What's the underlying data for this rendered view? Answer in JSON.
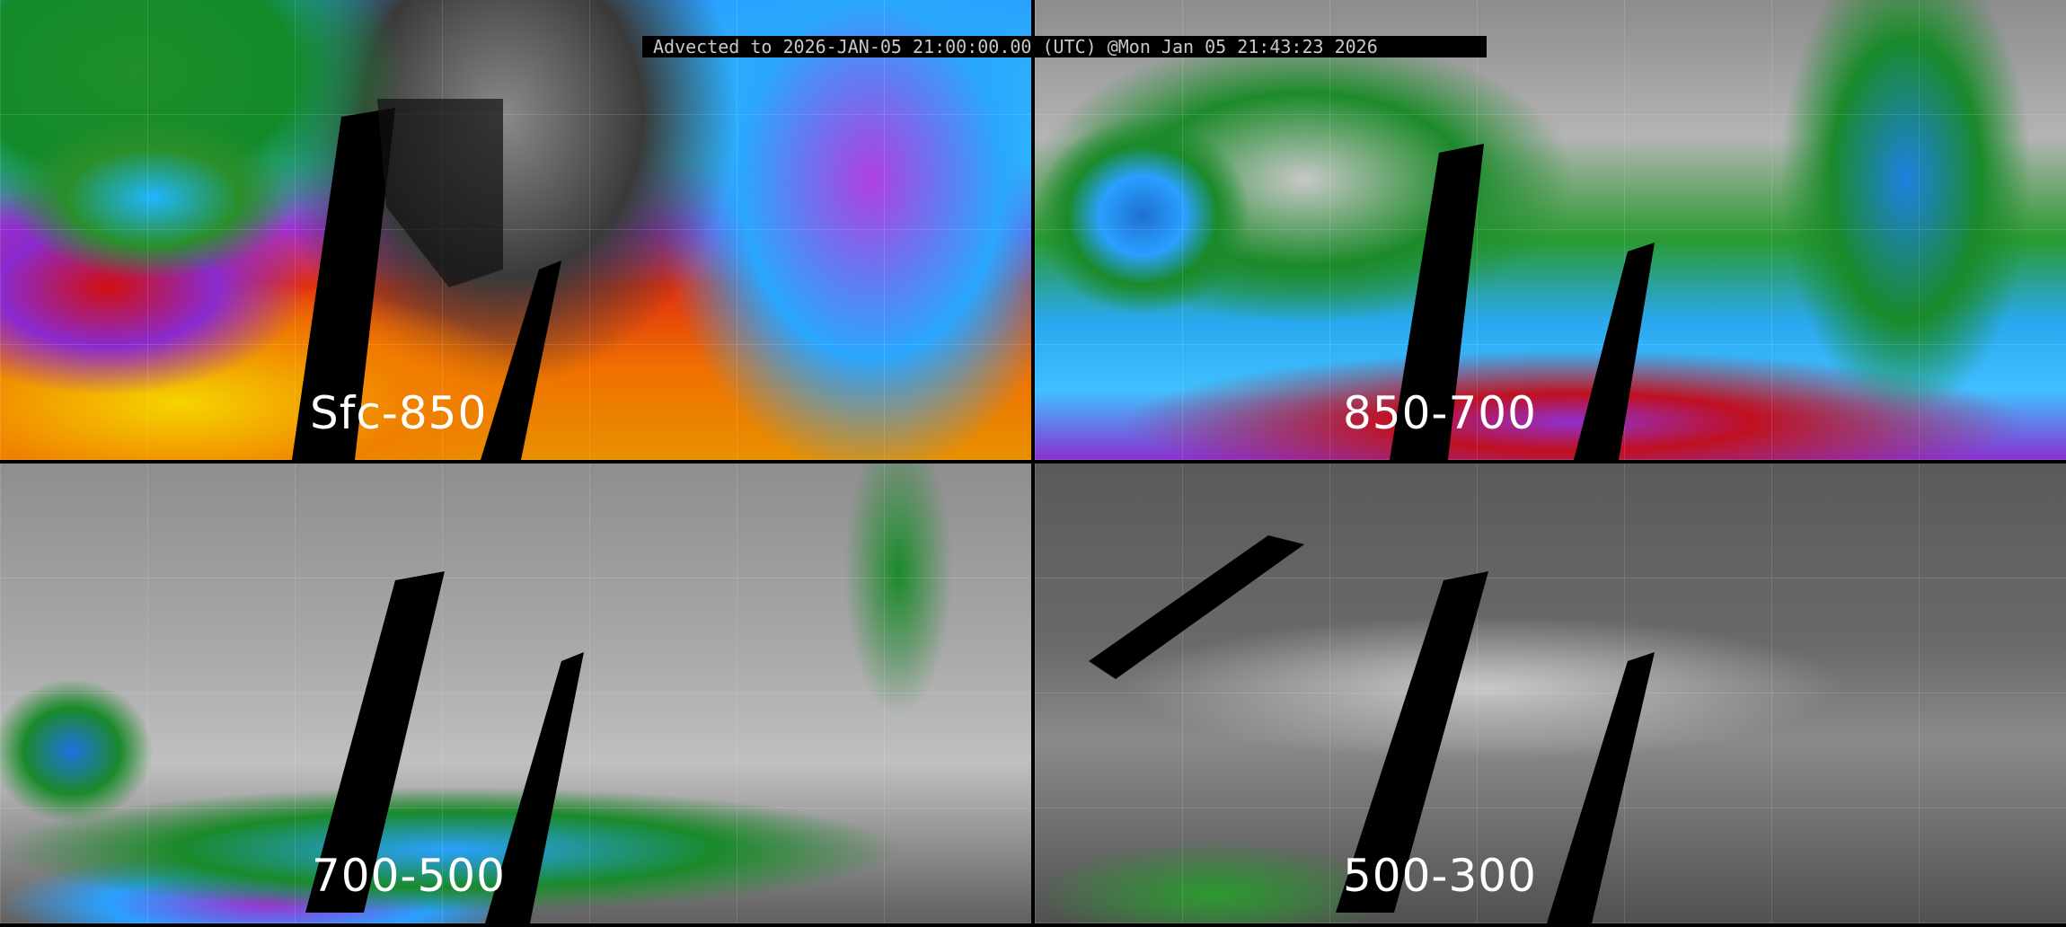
{
  "title_bar": "Advected to 2026-JAN-05 21:00:00.00 (UTC) @Mon Jan 05 21:43:23 2026",
  "panels": [
    {
      "label": "Sfc-850",
      "colormap": "yellow-orange-red-purple-blue-green-gray"
    },
    {
      "label": "850-700",
      "colormap": "red-purple-blue-green-gray"
    },
    {
      "label": "700-500",
      "colormap": "purple-blue-green-gray"
    },
    {
      "label": "500-300",
      "colormap": "green-gray"
    }
  ],
  "colors": {
    "background": "#000000",
    "borders": "#ffffff",
    "title_text": "#c8c8c8",
    "label_text": "#ffffff"
  }
}
